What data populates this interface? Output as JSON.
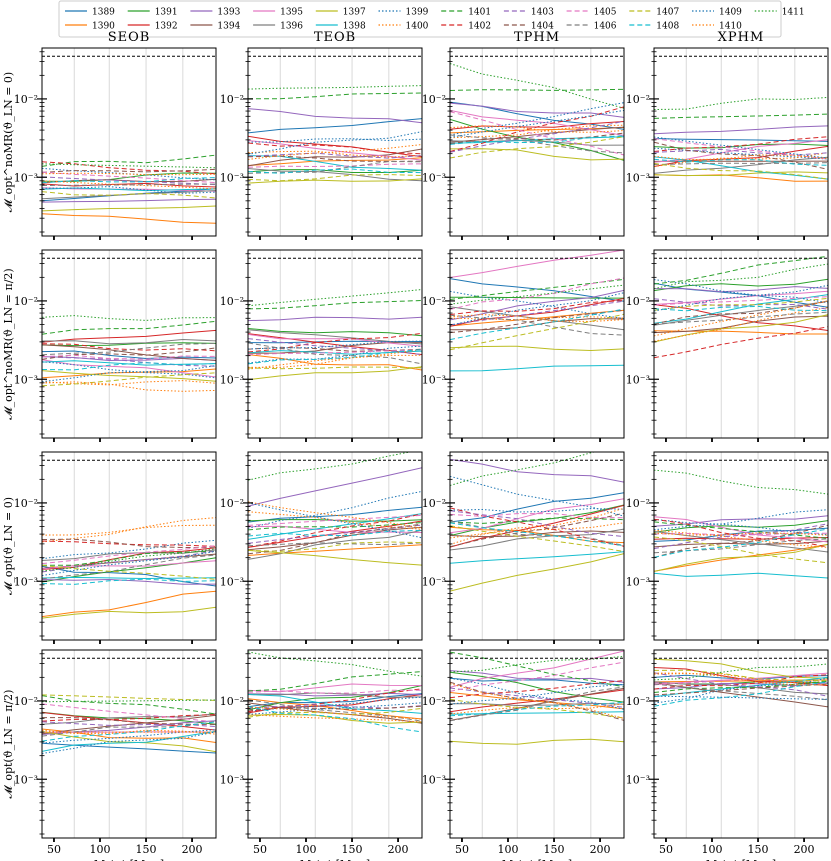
{
  "chart_data": {
    "type": "line",
    "legend": {
      "placement": "top",
      "entries": [
        {
          "label": "1389",
          "color": "#1f77b4",
          "style": "solid"
        },
        {
          "label": "1390",
          "color": "#ff7f0e",
          "style": "solid"
        },
        {
          "label": "1391",
          "color": "#2ca02c",
          "style": "solid"
        },
        {
          "label": "1392",
          "color": "#d62728",
          "style": "solid"
        },
        {
          "label": "1393",
          "color": "#9467bd",
          "style": "solid"
        },
        {
          "label": "1394",
          "color": "#8c564b",
          "style": "solid"
        },
        {
          "label": "1395",
          "color": "#e377c2",
          "style": "solid"
        },
        {
          "label": "1396",
          "color": "#7f7f7f",
          "style": "solid"
        },
        {
          "label": "1397",
          "color": "#bcbd22",
          "style": "solid"
        },
        {
          "label": "1398",
          "color": "#17becf",
          "style": "solid"
        },
        {
          "label": "1399",
          "color": "#1f77b4",
          "style": "dotted"
        },
        {
          "label": "1400",
          "color": "#ff7f0e",
          "style": "dotted"
        },
        {
          "label": "1401",
          "color": "#2ca02c",
          "style": "dashed"
        },
        {
          "label": "1402",
          "color": "#d62728",
          "style": "dashed"
        },
        {
          "label": "1403",
          "color": "#9467bd",
          "style": "dashed"
        },
        {
          "label": "1404",
          "color": "#8c564b",
          "style": "dashed"
        },
        {
          "label": "1405",
          "color": "#e377c2",
          "style": "dashed"
        },
        {
          "label": "1406",
          "color": "#7f7f7f",
          "style": "dashed"
        },
        {
          "label": "1407",
          "color": "#bcbd22",
          "style": "dashed"
        },
        {
          "label": "1408",
          "color": "#17becf",
          "style": "dashed"
        },
        {
          "label": "1409",
          "color": "#1f77b4",
          "style": "dotted"
        },
        {
          "label": "1410",
          "color": "#ff7f0e",
          "style": "dotted"
        },
        {
          "label": "1411",
          "color": "#2ca02c",
          "style": "dotted"
        }
      ]
    },
    "columns": [
      "SEOB",
      "TEOB",
      "TPHM",
      "XPHM"
    ],
    "row_labels": [
      "𝓜_opt^noMR(ϑ_LN = 0)",
      "𝓜_opt^noMR(ϑ_LN = π/2)",
      "𝓜_opt(ϑ_LN = 0)",
      "𝓜_opt(ϑ_LN = π/2)"
    ],
    "xlabel": "M_tot [M_⊙]",
    "xlim": [
      37,
      226
    ],
    "xticks": [
      50,
      100,
      150,
      200
    ],
    "ylim_log10": [
      -3.75,
      -1.35
    ],
    "ytick_labels": [
      {
        "exp": -2,
        "text": "10⁻²"
      },
      {
        "exp": -3,
        "text": "10⁻³"
      }
    ],
    "threshold": 0.035,
    "grid_x": [
      37,
      72,
      110,
      150,
      190,
      226
    ],
    "x": [
      37,
      72,
      110,
      150,
      190,
      226
    ],
    "panels": [
      [
        {
          "levels": [
            0.0006,
            0.0003,
            0.001,
            0.0008,
            0.0005,
            0.0009,
            0.0007,
            0.0006,
            0.0004,
            0.0007,
            0.0011,
            0.0008,
            0.0016,
            0.0013,
            0.0009,
            0.0012,
            0.001,
            0.0008,
            0.0006,
            0.0009,
            0.0007,
            0.0011,
            0.0014
          ],
          "spread": 0.3
        },
        {
          "levels": [
            0.0045,
            0.0016,
            0.0012,
            0.0025,
            0.006,
            0.0018,
            0.0022,
            0.0011,
            0.0009,
            0.0015,
            0.003,
            0.002,
            0.011,
            0.0024,
            0.0019,
            0.0017,
            0.0014,
            0.0013,
            0.001,
            0.0012,
            0.0028,
            0.0021,
            0.014
          ],
          "spread": 0.5
        },
        {
          "levels": [
            0.006,
            0.004,
            0.003,
            0.0045,
            0.007,
            0.0035,
            0.005,
            0.0028,
            0.002,
            0.003,
            0.0055,
            0.0038,
            0.013,
            0.0042,
            0.0033,
            0.0031,
            0.0036,
            0.0027,
            0.0024,
            0.0029,
            0.0048,
            0.0041,
            0.015
          ],
          "spread": 1.1
        },
        {
          "levels": [
            0.003,
            0.001,
            0.0025,
            0.0018,
            0.004,
            0.0016,
            0.0022,
            0.0014,
            0.0011,
            0.0013,
            0.002,
            0.0017,
            0.006,
            0.0026,
            0.0021,
            0.0019,
            0.0023,
            0.0015,
            0.0012,
            0.0016,
            0.0024,
            0.0018,
            0.009
          ],
          "spread": 0.6
        }
      ],
      [
        {
          "levels": [
            0.002,
            0.0012,
            0.0028,
            0.0035,
            0.0018,
            0.0022,
            0.0014,
            0.003,
            0.0011,
            0.0016,
            0.0013,
            0.0009,
            0.0045,
            0.0025,
            0.0017,
            0.0021,
            0.0019,
            0.0024,
            0.001,
            0.0015,
            0.0012,
            0.0008,
            0.006
          ],
          "spread": 0.45
        },
        {
          "levels": [
            0.003,
            0.0016,
            0.004,
            0.0028,
            0.006,
            0.0025,
            0.0032,
            0.0035,
            0.0012,
            0.0022,
            0.002,
            0.0018,
            0.009,
            0.003,
            0.0026,
            0.0024,
            0.0022,
            0.0021,
            0.0014,
            0.0019,
            0.0027,
            0.0017,
            0.011
          ],
          "spread": 0.6
        },
        {
          "levels": [
            0.014,
            0.006,
            0.011,
            0.007,
            0.009,
            0.005,
            0.03,
            0.006,
            0.0025,
            0.0014,
            0.009,
            0.006,
            0.014,
            0.008,
            0.007,
            0.0055,
            0.012,
            0.005,
            0.004,
            0.005,
            0.008,
            0.006,
            0.012
          ],
          "spread": 0.9
        },
        {
          "levels": [
            0.012,
            0.004,
            0.016,
            0.006,
            0.014,
            0.005,
            0.011,
            0.007,
            0.0045,
            0.008,
            0.013,
            0.005,
            0.025,
            0.003,
            0.009,
            0.007,
            0.01,
            0.006,
            0.009,
            0.008,
            0.011,
            0.006,
            0.02
          ],
          "spread": 0.9
        }
      ],
      [
        {
          "levels": [
            0.0012,
            0.0005,
            0.0014,
            0.002,
            0.001,
            0.0018,
            0.0016,
            0.0022,
            0.0004,
            0.0011,
            0.0025,
            0.0045,
            0.002,
            0.003,
            0.0018,
            0.003,
            0.0022,
            0.0015,
            0.0013,
            0.001,
            0.0017,
            0.0045,
            0.0019
          ],
          "spread": 0.7
        },
        {
          "levels": [
            0.007,
            0.0025,
            0.006,
            0.004,
            0.016,
            0.0035,
            0.0045,
            0.003,
            0.002,
            0.005,
            0.008,
            0.006,
            0.005,
            0.0045,
            0.004,
            0.0035,
            0.006,
            0.003,
            0.0028,
            0.004,
            0.006,
            0.007,
            0.03
          ],
          "spread": 1.0
        },
        {
          "levels": [
            0.009,
            0.004,
            0.006,
            0.005,
            0.025,
            0.004,
            0.007,
            0.0035,
            0.0013,
            0.002,
            0.008,
            0.0045,
            0.006,
            0.005,
            0.0055,
            0.0045,
            0.007,
            0.004,
            0.0035,
            0.004,
            0.012,
            0.005,
            0.03
          ],
          "spread": 1.1
        },
        {
          "levels": [
            0.004,
            0.002,
            0.005,
            0.0035,
            0.006,
            0.003,
            0.0045,
            0.0032,
            0.002,
            0.0012,
            0.005,
            0.0035,
            0.0045,
            0.004,
            0.0038,
            0.0032,
            0.004,
            0.0028,
            0.0025,
            0.003,
            0.006,
            0.004,
            0.018
          ],
          "spread": 0.8
        }
      ],
      [
        {
          "levels": [
            0.0025,
            0.0035,
            0.006,
            0.0055,
            0.0045,
            0.005,
            0.004,
            0.006,
            0.003,
            0.003,
            0.0035,
            0.004,
            0.009,
            0.006,
            0.005,
            0.0055,
            0.007,
            0.0045,
            0.011,
            0.004,
            0.003,
            0.004,
            0.01
          ],
          "spread": 0.5
        },
        {
          "levels": [
            0.01,
            0.008,
            0.011,
            0.009,
            0.012,
            0.007,
            0.015,
            0.012,
            0.006,
            0.009,
            0.009,
            0.006,
            0.018,
            0.01,
            0.0085,
            0.008,
            0.013,
            0.0075,
            0.007,
            0.006,
            0.008,
            0.007,
            0.03
          ],
          "spread": 0.6
        },
        {
          "levels": [
            0.018,
            0.01,
            0.015,
            0.01,
            0.02,
            0.009,
            0.025,
            0.009,
            0.003,
            0.007,
            0.012,
            0.008,
            0.025,
            0.014,
            0.011,
            0.01,
            0.02,
            0.009,
            0.008,
            0.008,
            0.012,
            0.01,
            0.03
          ],
          "spread": 0.9
        },
        {
          "levels": [
            0.02,
            0.018,
            0.017,
            0.02,
            0.016,
            0.012,
            0.019,
            0.015,
            0.026,
            0.015,
            0.014,
            0.02,
            0.015,
            0.017,
            0.016,
            0.014,
            0.018,
            0.013,
            0.021,
            0.012,
            0.011,
            0.019,
            0.024
          ],
          "spread": 0.6
        }
      ]
    ]
  }
}
